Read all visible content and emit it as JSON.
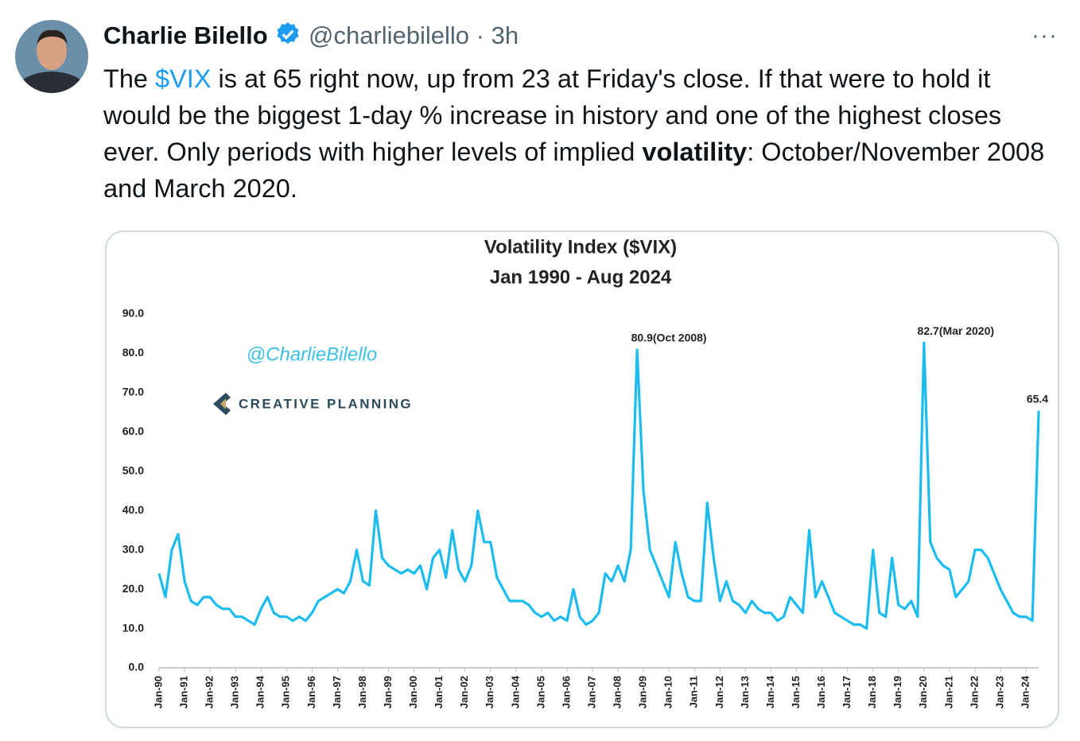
{
  "tweet": {
    "author": "Charlie Bilello",
    "handle": "@charliebilello",
    "separator": "·",
    "time": "3h",
    "more": "···",
    "text": [
      {
        "text": "The "
      },
      {
        "text": "$VIX",
        "style": "link"
      },
      {
        "text": " is at 65 right now, up from 23 at Friday's close. If that were to hold it would be the biggest 1-day % increase in history and one of the highest closes ever.  Only periods with higher levels of implied "
      },
      {
        "text": "volatility",
        "style": "bold"
      },
      {
        "text": ": October/November 2008 and March 2020."
      }
    ]
  },
  "chart_data": {
    "type": "line",
    "title": "Volatility Index ($VIX)",
    "subtitle": "Jan 1990 - Aug 2024",
    "watermarks": [
      "@CharlieBilello",
      "CREATIVE PLANNING"
    ],
    "color": "#1cbcef",
    "grid": false,
    "ylim": [
      0,
      90
    ],
    "yticks": [
      {
        "value": 0,
        "label": "0.0"
      },
      {
        "value": 10,
        "label": "10.0"
      },
      {
        "value": 20,
        "label": "20.0"
      },
      {
        "value": 30,
        "label": "30.0"
      },
      {
        "value": 40,
        "label": "40.0"
      },
      {
        "value": 50,
        "label": "50.0"
      },
      {
        "value": 60,
        "label": "60.0"
      },
      {
        "value": 70,
        "label": "70.0"
      },
      {
        "value": 80,
        "label": "80.0"
      },
      {
        "value": 90,
        "label": "90.0"
      }
    ],
    "categories": [
      "Jan-90",
      null,
      null,
      null,
      "Jan-91",
      null,
      null,
      null,
      "Jan-92",
      null,
      null,
      null,
      "Jan-93",
      null,
      null,
      null,
      "Jan-94",
      null,
      null,
      null,
      "Jan-95",
      null,
      null,
      null,
      "Jan-96",
      null,
      null,
      null,
      "Jan-97",
      null,
      null,
      null,
      "Jan-98",
      null,
      null,
      null,
      "Jan-99",
      null,
      null,
      null,
      "Jan-00",
      null,
      null,
      null,
      "Jan-01",
      null,
      null,
      null,
      "Jan-02",
      null,
      null,
      null,
      "Jan-03",
      null,
      null,
      null,
      "Jan-04",
      null,
      null,
      null,
      "Jan-05",
      null,
      null,
      null,
      "Jan-06",
      null,
      null,
      null,
      "Jan-07",
      null,
      null,
      null,
      "Jan-08",
      null,
      null,
      null,
      "Jan-09",
      null,
      null,
      null,
      "Jan-10",
      null,
      null,
      null,
      "Jan-11",
      null,
      null,
      null,
      "Jan-12",
      null,
      null,
      null,
      "Jan-13",
      null,
      null,
      null,
      "Jan-14",
      null,
      null,
      null,
      "Jan-15",
      null,
      null,
      null,
      "Jan-16",
      null,
      null,
      null,
      "Jan-17",
      null,
      null,
      null,
      "Jan-18",
      null,
      null,
      null,
      "Jan-19",
      null,
      null,
      null,
      "Jan-20",
      null,
      null,
      null,
      "Jan-21",
      null,
      null,
      null,
      "Jan-22",
      null,
      null,
      null,
      "Jan-23",
      null,
      null,
      null,
      "Jan-24",
      null,
      null
    ],
    "values": [
      24,
      18,
      30,
      34,
      22,
      17,
      16,
      18,
      18,
      16,
      15,
      15,
      13,
      13,
      12,
      11,
      15,
      18,
      14,
      13,
      13,
      12,
      13,
      12,
      14,
      17,
      18,
      19,
      20,
      19,
      22,
      30,
      22,
      21,
      40,
      28,
      26,
      25,
      24,
      25,
      24,
      26,
      20,
      28,
      30,
      23,
      35,
      25,
      22,
      26,
      40,
      32,
      32,
      23,
      20,
      17,
      17,
      17,
      16,
      14,
      13,
      14,
      12,
      13,
      12,
      20,
      13,
      11,
      12,
      14,
      24,
      22,
      26,
      22,
      30,
      80.9,
      45,
      30,
      26,
      22,
      18,
      32,
      24,
      18,
      17,
      17,
      42,
      28,
      17,
      22,
      17,
      16,
      14,
      17,
      15,
      14,
      14,
      12,
      13,
      18,
      16,
      14,
      35,
      18,
      22,
      18,
      14,
      13,
      12,
      11,
      11,
      10,
      30,
      14,
      13,
      28,
      16,
      15,
      17,
      13,
      82.7,
      32,
      28,
      26,
      25,
      18,
      20,
      22,
      30,
      30,
      28,
      24,
      20,
      17,
      14,
      13,
      13,
      12,
      65.4
    ],
    "value_labels": [
      null,
      null,
      null,
      null,
      null,
      null,
      null,
      null,
      null,
      null,
      null,
      null,
      null,
      null,
      null,
      null,
      null,
      null,
      null,
      null,
      null,
      null,
      null,
      null,
      null,
      null,
      null,
      null,
      null,
      null,
      null,
      null,
      null,
      null,
      null,
      null,
      null,
      null,
      null,
      null,
      null,
      null,
      null,
      null,
      null,
      null,
      null,
      null,
      null,
      null,
      null,
      null,
      null,
      null,
      null,
      null,
      null,
      null,
      null,
      null,
      null,
      null,
      null,
      null,
      null,
      null,
      null,
      null,
      null,
      null,
      null,
      null,
      null,
      null,
      null,
      "80.9(Oct 2008)",
      null,
      null,
      null,
      null,
      null,
      null,
      null,
      null,
      null,
      null,
      null,
      null,
      null,
      null,
      null,
      null,
      null,
      null,
      null,
      null,
      null,
      null,
      null,
      null,
      null,
      null,
      null,
      null,
      null,
      null,
      null,
      null,
      null,
      null,
      null,
      null,
      null,
      null,
      null,
      null,
      null,
      null,
      null,
      null,
      "82.7(Mar 2020)",
      null,
      null,
      null,
      null,
      null,
      null,
      null,
      null,
      null,
      null,
      null,
      null,
      null,
      null,
      null,
      null,
      null,
      "65.4"
    ]
  }
}
